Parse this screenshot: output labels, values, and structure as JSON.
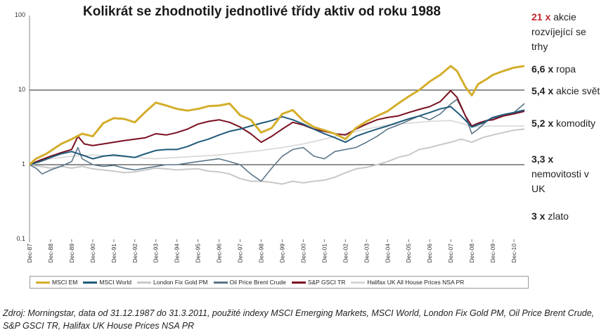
{
  "chart_data": {
    "type": "line",
    "title": "Kolikrát se zhodnotily jednotlivé třídy aktiv od roku 1988",
    "yscale": "log",
    "ylim": [
      0.1,
      100
    ],
    "yticks": [
      "100",
      "10",
      "1",
      "0.1"
    ],
    "x_tick_labels": [
      "Dec-87",
      "Dec-88",
      "Dec-89",
      "Dec-90",
      "Dec-91",
      "Dec-92",
      "Dec-93",
      "Dec-94",
      "Dec-95",
      "Dec-96",
      "Dec-97",
      "Dec-98",
      "Dec-99",
      "Dec-00",
      "Dec-01",
      "Dec-02",
      "Dec-03",
      "Dec-04",
      "Dec-05",
      "Dec-06",
      "Dec-07",
      "Dec-08",
      "Dec-09",
      "Dec-10"
    ],
    "series": [
      {
        "name": "MSCI EM",
        "color": "#d4ae2c",
        "width": 3,
        "points": [
          [
            0,
            1
          ],
          [
            0.3,
            1.2
          ],
          [
            0.8,
            1.4
          ],
          [
            1.5,
            1.9
          ],
          [
            2,
            2.2
          ],
          [
            2.5,
            2.6
          ],
          [
            3,
            2.4
          ],
          [
            3.5,
            3.6
          ],
          [
            4,
            4.2
          ],
          [
            4.5,
            4.1
          ],
          [
            5,
            3.7
          ],
          [
            5.5,
            5.1
          ],
          [
            6,
            6.8
          ],
          [
            6.5,
            6.2
          ],
          [
            7,
            5.6
          ],
          [
            7.5,
            5.3
          ],
          [
            8,
            5.6
          ],
          [
            8.5,
            6.1
          ],
          [
            9,
            6.2
          ],
          [
            9.5,
            6.6
          ],
          [
            10,
            4.6
          ],
          [
            10.5,
            4.0
          ],
          [
            11,
            2.7
          ],
          [
            11.5,
            3.1
          ],
          [
            12,
            4.8
          ],
          [
            12.5,
            5.4
          ],
          [
            13,
            3.9
          ],
          [
            13.5,
            3.2
          ],
          [
            14,
            2.9
          ],
          [
            14.5,
            2.6
          ],
          [
            15,
            2.2
          ],
          [
            15.5,
            3.1
          ],
          [
            16,
            3.8
          ],
          [
            16.5,
            4.5
          ],
          [
            17,
            5.2
          ],
          [
            17.5,
            6.6
          ],
          [
            18,
            8.2
          ],
          [
            18.5,
            10
          ],
          [
            19,
            13
          ],
          [
            19.5,
            16
          ],
          [
            20,
            21
          ],
          [
            20.3,
            18
          ],
          [
            20.7,
            11
          ],
          [
            21,
            8.5
          ],
          [
            21.3,
            12
          ],
          [
            21.7,
            14
          ],
          [
            22,
            16
          ],
          [
            22.5,
            18
          ],
          [
            23,
            20
          ],
          [
            23.5,
            21
          ]
        ]
      },
      {
        "name": "MSCI World",
        "color": "#1f5a7a",
        "width": 2,
        "points": [
          [
            0,
            1
          ],
          [
            0.5,
            1.1
          ],
          [
            1,
            1.25
          ],
          [
            1.5,
            1.4
          ],
          [
            2,
            1.5
          ],
          [
            2.5,
            1.35
          ],
          [
            3,
            1.2
          ],
          [
            3.5,
            1.3
          ],
          [
            4,
            1.35
          ],
          [
            4.5,
            1.3
          ],
          [
            5,
            1.25
          ],
          [
            5.5,
            1.4
          ],
          [
            6,
            1.55
          ],
          [
            6.5,
            1.6
          ],
          [
            7,
            1.6
          ],
          [
            7.5,
            1.75
          ],
          [
            8,
            2.0
          ],
          [
            8.5,
            2.2
          ],
          [
            9,
            2.5
          ],
          [
            9.5,
            2.8
          ],
          [
            10,
            3.0
          ],
          [
            10.5,
            3.3
          ],
          [
            11,
            3.6
          ],
          [
            11.5,
            3.9
          ],
          [
            12,
            4.4
          ],
          [
            12.5,
            4.0
          ],
          [
            13,
            3.5
          ],
          [
            13.5,
            3.0
          ],
          [
            14,
            2.6
          ],
          [
            14.5,
            2.3
          ],
          [
            15,
            2.0
          ],
          [
            15.5,
            2.4
          ],
          [
            16,
            2.7
          ],
          [
            16.5,
            3.0
          ],
          [
            17,
            3.3
          ],
          [
            17.5,
            3.7
          ],
          [
            18,
            4.1
          ],
          [
            18.5,
            4.5
          ],
          [
            19,
            5.0
          ],
          [
            19.5,
            5.6
          ],
          [
            20,
            6.0
          ],
          [
            20.5,
            4.5
          ],
          [
            21,
            3.2
          ],
          [
            21.5,
            3.6
          ],
          [
            22,
            4.3
          ],
          [
            22.5,
            4.7
          ],
          [
            23,
            5.0
          ],
          [
            23.5,
            5.4
          ]
        ]
      },
      {
        "name": "London Fix Gold PM",
        "color": "#c8c8c8",
        "width": 2,
        "points": [
          [
            0,
            1
          ],
          [
            0.5,
            0.95
          ],
          [
            1,
            0.9
          ],
          [
            1.5,
            0.95
          ],
          [
            2,
            0.9
          ],
          [
            2.5,
            0.95
          ],
          [
            3,
            0.88
          ],
          [
            3.5,
            0.85
          ],
          [
            4,
            0.82
          ],
          [
            4.5,
            0.78
          ],
          [
            5,
            0.8
          ],
          [
            5.5,
            0.85
          ],
          [
            6,
            0.9
          ],
          [
            6.5,
            0.88
          ],
          [
            7,
            0.85
          ],
          [
            7.5,
            0.87
          ],
          [
            8,
            0.88
          ],
          [
            8.5,
            0.82
          ],
          [
            9,
            0.8
          ],
          [
            9.5,
            0.75
          ],
          [
            10,
            0.65
          ],
          [
            10.5,
            0.6
          ],
          [
            11,
            0.6
          ],
          [
            11.5,
            0.58
          ],
          [
            12,
            0.55
          ],
          [
            12.5,
            0.6
          ],
          [
            13,
            0.57
          ],
          [
            13.5,
            0.6
          ],
          [
            14,
            0.62
          ],
          [
            14.5,
            0.68
          ],
          [
            15,
            0.78
          ],
          [
            15.5,
            0.88
          ],
          [
            16,
            0.92
          ],
          [
            16.5,
            1.0
          ],
          [
            17,
            1.1
          ],
          [
            17.5,
            1.25
          ],
          [
            18,
            1.35
          ],
          [
            18.5,
            1.6
          ],
          [
            19,
            1.7
          ],
          [
            19.5,
            1.85
          ],
          [
            20,
            2.0
          ],
          [
            20.5,
            2.2
          ],
          [
            21,
            2.0
          ],
          [
            21.5,
            2.3
          ],
          [
            22,
            2.5
          ],
          [
            22.5,
            2.7
          ],
          [
            23,
            2.9
          ],
          [
            23.5,
            3.0
          ]
        ]
      },
      {
        "name": "Oil Price Brent Crude",
        "color": "#5b7588",
        "width": 1.6,
        "points": [
          [
            0,
            1
          ],
          [
            0.3,
            0.9
          ],
          [
            0.6,
            0.75
          ],
          [
            1,
            0.85
          ],
          [
            1.5,
            0.95
          ],
          [
            2,
            1.1
          ],
          [
            2.3,
            1.7
          ],
          [
            2.5,
            1.2
          ],
          [
            3,
            1.0
          ],
          [
            3.5,
            0.95
          ],
          [
            4,
            0.98
          ],
          [
            4.5,
            0.9
          ],
          [
            5,
            0.85
          ],
          [
            5.5,
            0.9
          ],
          [
            6,
            0.95
          ],
          [
            6.5,
            1.0
          ],
          [
            7,
            1.0
          ],
          [
            7.5,
            1.05
          ],
          [
            8,
            1.1
          ],
          [
            8.5,
            1.15
          ],
          [
            9,
            1.2
          ],
          [
            9.5,
            1.1
          ],
          [
            10,
            1.0
          ],
          [
            10.5,
            0.75
          ],
          [
            11,
            0.6
          ],
          [
            11.5,
            0.9
          ],
          [
            12,
            1.3
          ],
          [
            12.5,
            1.6
          ],
          [
            13,
            1.7
          ],
          [
            13.5,
            1.3
          ],
          [
            14,
            1.2
          ],
          [
            14.5,
            1.5
          ],
          [
            15,
            1.6
          ],
          [
            15.5,
            1.7
          ],
          [
            16,
            2.0
          ],
          [
            16.5,
            2.4
          ],
          [
            17,
            3.0
          ],
          [
            17.5,
            3.4
          ],
          [
            18,
            3.9
          ],
          [
            18.5,
            4.5
          ],
          [
            19,
            4.0
          ],
          [
            19.5,
            4.8
          ],
          [
            20,
            6.5
          ],
          [
            20.3,
            7.5
          ],
          [
            20.7,
            4.5
          ],
          [
            21,
            2.6
          ],
          [
            21.3,
            3.0
          ],
          [
            21.7,
            3.8
          ],
          [
            22,
            4.2
          ],
          [
            22.5,
            4.5
          ],
          [
            23,
            5.0
          ],
          [
            23.5,
            6.6
          ]
        ]
      },
      {
        "name": "S&P GSCI TR",
        "color": "#7a1020",
        "width": 2,
        "points": [
          [
            0,
            1
          ],
          [
            0.5,
            1.15
          ],
          [
            1,
            1.3
          ],
          [
            1.5,
            1.45
          ],
          [
            2,
            1.6
          ],
          [
            2.3,
            2.4
          ],
          [
            2.6,
            1.9
          ],
          [
            3,
            1.8
          ],
          [
            3.5,
            1.9
          ],
          [
            4,
            2.0
          ],
          [
            4.5,
            2.1
          ],
          [
            5,
            2.2
          ],
          [
            5.5,
            2.3
          ],
          [
            6,
            2.6
          ],
          [
            6.5,
            2.5
          ],
          [
            7,
            2.7
          ],
          [
            7.5,
            3.0
          ],
          [
            8,
            3.5
          ],
          [
            8.5,
            3.8
          ],
          [
            9,
            4.0
          ],
          [
            9.5,
            3.7
          ],
          [
            10,
            3.2
          ],
          [
            10.5,
            2.6
          ],
          [
            11,
            2.0
          ],
          [
            11.5,
            2.4
          ],
          [
            12,
            3.0
          ],
          [
            12.5,
            3.7
          ],
          [
            13,
            3.4
          ],
          [
            13.5,
            3.0
          ],
          [
            14,
            2.8
          ],
          [
            14.5,
            2.6
          ],
          [
            15,
            2.5
          ],
          [
            15.5,
            3.0
          ],
          [
            16,
            3.5
          ],
          [
            16.5,
            4.0
          ],
          [
            17,
            4.3
          ],
          [
            17.5,
            4.5
          ],
          [
            18,
            5.0
          ],
          [
            18.5,
            5.5
          ],
          [
            19,
            6.0
          ],
          [
            19.5,
            7.0
          ],
          [
            20,
            9.8
          ],
          [
            20.3,
            8.0
          ],
          [
            20.7,
            4.5
          ],
          [
            21,
            3.3
          ],
          [
            21.3,
            3.6
          ],
          [
            21.7,
            3.9
          ],
          [
            22,
            4.0
          ],
          [
            22.5,
            4.5
          ],
          [
            23,
            4.8
          ],
          [
            23.5,
            5.2
          ]
        ]
      },
      {
        "name": "Halifax UK All House Prices NSA PR",
        "color": "#d6d6d6",
        "width": 1.6,
        "points": [
          [
            0,
            1
          ],
          [
            1,
            1.2
          ],
          [
            2,
            1.3
          ],
          [
            3,
            1.35
          ],
          [
            4,
            1.3
          ],
          [
            5,
            1.25
          ],
          [
            6,
            1.2
          ],
          [
            7,
            1.25
          ],
          [
            8,
            1.3
          ],
          [
            9,
            1.35
          ],
          [
            10,
            1.45
          ],
          [
            11,
            1.55
          ],
          [
            12,
            1.7
          ],
          [
            13,
            1.9
          ],
          [
            14,
            2.2
          ],
          [
            15,
            2.6
          ],
          [
            16,
            3.0
          ],
          [
            17,
            3.4
          ],
          [
            18,
            3.6
          ],
          [
            19,
            3.8
          ],
          [
            20,
            3.9
          ],
          [
            20.5,
            3.6
          ],
          [
            21,
            3.2
          ],
          [
            21.5,
            3.25
          ],
          [
            22,
            3.3
          ],
          [
            22.5,
            3.3
          ],
          [
            23,
            3.3
          ],
          [
            23.5,
            3.3
          ]
        ]
      }
    ]
  },
  "right_labels": [
    {
      "num": "21 x",
      "text": "akcie rozvíjející se trhy",
      "red": true
    },
    {
      "num": "6,6 x",
      "text": "ropa",
      "red": false
    },
    {
      "num": "5,4 x",
      "text": "akcie svět",
      "red": false
    },
    {
      "num": "5,2 x",
      "text": "komodity",
      "red": false
    },
    {
      "num": "3,3 x",
      "text": "nemovitosti v UK",
      "red": false
    },
    {
      "num": "3 x",
      "text": "zlato",
      "red": false
    }
  ],
  "source": "Zdroj: Morningstar, data od 31.12.1987 do 31.3.2011, použité indexy MSCI Emerging Markets, MSCI World, London Fix Gold PM, Oil Price Brent Crude, S&P GSCI TR, Halifax UK House Prices NSA PR"
}
